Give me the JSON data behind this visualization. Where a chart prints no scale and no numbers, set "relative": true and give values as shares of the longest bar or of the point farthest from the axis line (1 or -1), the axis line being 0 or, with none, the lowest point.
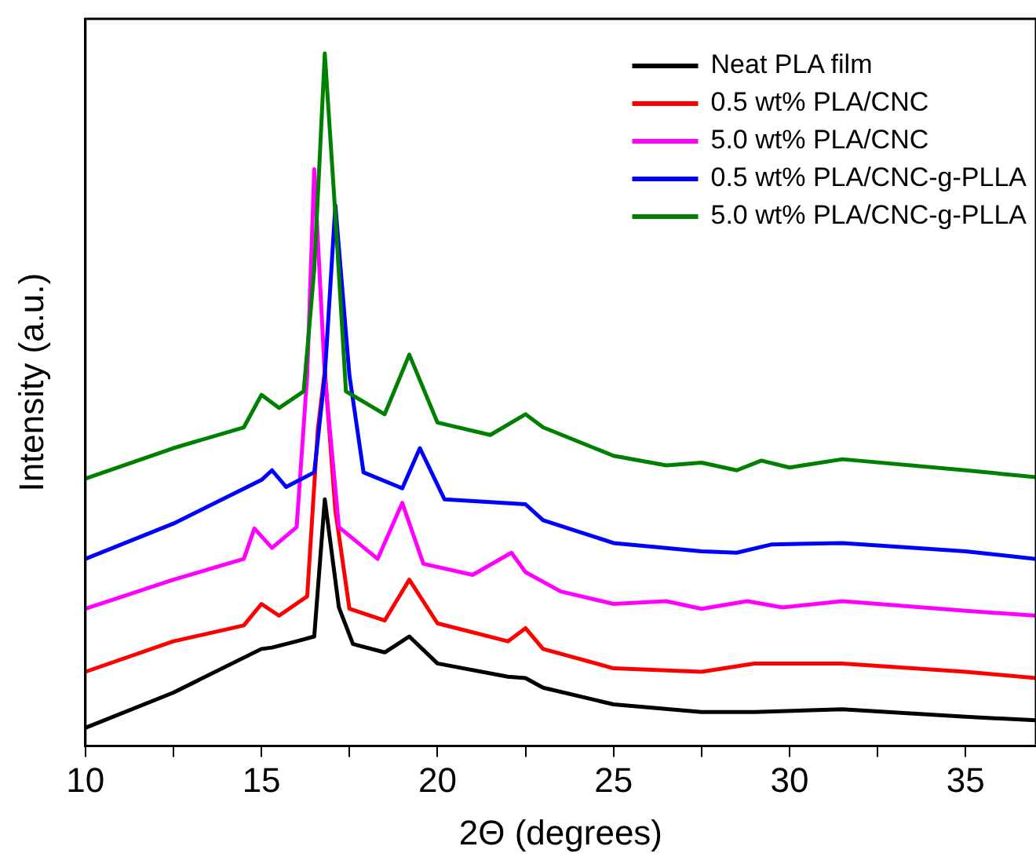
{
  "chart_data": {
    "type": "line",
    "relative": true,
    "xlabel": "2Θ (degrees)",
    "ylabel": "Intensity (a.u.)",
    "xlim": [
      10,
      37
    ],
    "xticks": [
      10,
      {
        "value": 12.5,
        "label": null
      },
      15,
      {
        "value": 17.5,
        "label": null
      },
      20,
      {
        "value": 22.5,
        "label": null
      },
      25,
      {
        "value": 27.5,
        "label": null
      },
      30,
      {
        "value": 32.5,
        "label": null
      },
      35
    ],
    "grid": false,
    "legend": "top right",
    "marker": "none",
    "line_style": "solid",
    "tick_labels": "x",
    "series": [
      {
        "name": "Neat PLA film",
        "color": "#000000",
        "x": [
          10,
          12.5,
          15,
          15.3,
          16,
          16.5,
          16.8,
          17.2,
          17.6,
          18.5,
          19.2,
          20,
          22,
          22.5,
          23,
          25,
          27.5,
          29,
          31.5,
          35,
          37
        ],
        "values": [
          0.026,
          0.077,
          0.14,
          0.142,
          0.151,
          0.158,
          0.356,
          0.2,
          0.147,
          0.135,
          0.158,
          0.119,
          0.1,
          0.098,
          0.084,
          0.06,
          0.049,
          0.049,
          0.053,
          0.042,
          0.037
        ]
      },
      {
        "name": "0.5 wt% PLA/CNC",
        "color": "#ff0000",
        "x": [
          10,
          12.5,
          14.5,
          15,
          15.5,
          16.3,
          16.6,
          16.8,
          17.1,
          17.5,
          18.5,
          19.2,
          20,
          22,
          22.5,
          23,
          25,
          27.5,
          29,
          31.5,
          35,
          37
        ],
        "values": [
          0.107,
          0.151,
          0.174,
          0.205,
          0.188,
          0.216,
          0.456,
          0.542,
          0.34,
          0.198,
          0.181,
          0.24,
          0.177,
          0.151,
          0.17,
          0.14,
          0.112,
          0.107,
          0.119,
          0.119,
          0.107,
          0.098
        ]
      },
      {
        "name": "5.0 wt% PLA/CNC",
        "color": "#ff00ff",
        "x": [
          10,
          12.5,
          14.5,
          14.8,
          15.3,
          16,
          16.3,
          16.5,
          16.8,
          17.2,
          18.3,
          19,
          19.6,
          21,
          22.1,
          22.5,
          23.5,
          25,
          26.5,
          27.5,
          28.8,
          29.8,
          31.5,
          35,
          37
        ],
        "values": [
          0.198,
          0.24,
          0.27,
          0.314,
          0.286,
          0.316,
          0.535,
          0.833,
          0.535,
          0.316,
          0.27,
          0.351,
          0.263,
          0.247,
          0.279,
          0.251,
          0.223,
          0.205,
          0.209,
          0.198,
          0.209,
          0.2,
          0.209,
          0.195,
          0.188
        ]
      },
      {
        "name": "0.5 wt% PLA/CNC-g-PLLA",
        "color": "#0000ff",
        "x": [
          10,
          12.5,
          15,
          15.3,
          15.7,
          16.5,
          16.8,
          17.1,
          17.5,
          17.9,
          19,
          19.5,
          20.2,
          22.5,
          23,
          25,
          27.5,
          28.5,
          29.5,
          31.5,
          35,
          37
        ],
        "values": [
          0.27,
          0.321,
          0.384,
          0.398,
          0.374,
          0.395,
          0.535,
          0.781,
          0.535,
          0.395,
          0.372,
          0.43,
          0.356,
          0.349,
          0.326,
          0.293,
          0.281,
          0.279,
          0.291,
          0.293,
          0.281,
          0.27
        ]
      },
      {
        "name": "5.0 wt% PLA/CNC-g-PLLA",
        "color": "#008000",
        "x": [
          10,
          12.5,
          14.5,
          15,
          15.5,
          16.2,
          16.5,
          16.8,
          17.1,
          17.4,
          18.5,
          19.2,
          20,
          21.5,
          22.5,
          23,
          25,
          26.5,
          27.5,
          28.5,
          29.2,
          30,
          31.5,
          35,
          37
        ],
        "values": [
          0.386,
          0.43,
          0.46,
          0.507,
          0.488,
          0.512,
          0.688,
          1,
          0.767,
          0.512,
          0.479,
          0.565,
          0.467,
          0.449,
          0.479,
          0.46,
          0.419,
          0.405,
          0.409,
          0.398,
          0.412,
          0.402,
          0.414,
          0.398,
          0.388
        ]
      }
    ]
  }
}
